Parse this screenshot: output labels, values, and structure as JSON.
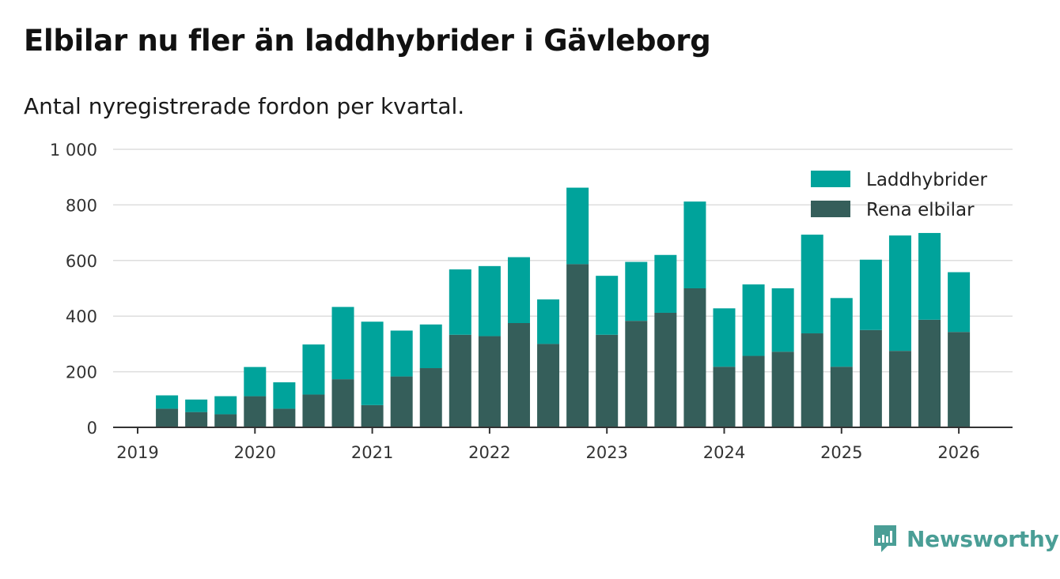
{
  "title": "Elbilar nu fler än laddhybrider i Gävleborg",
  "subtitle": "Antal nyregistrerade fordon per kvartal.",
  "brand": {
    "name": "Newsworthy",
    "icon": "newsworthy-logo-icon"
  },
  "colors": {
    "laddhybrider": "#00a39b",
    "elbilar": "#355e5a",
    "grid": "#dddddd",
    "axis": "#333333",
    "brand": "#4a9e96"
  },
  "chart_data": {
    "type": "bar",
    "stacked": true,
    "title": "Elbilar nu fler än laddhybrider i Gävleborg",
    "subtitle": "Antal nyregistrerade fordon per kvartal.",
    "xlabel": "",
    "ylabel": "",
    "ylim": [
      0,
      1000
    ],
    "yticks": [
      0,
      200,
      400,
      600,
      800,
      1000
    ],
    "ytick_labels": [
      "0",
      "200",
      "400",
      "600",
      "800",
      "1 000"
    ],
    "xlim": [
      2019.0,
      2026.45
    ],
    "xticks": [
      2019,
      2020,
      2021,
      2022,
      2023,
      2024,
      2025,
      2026
    ],
    "xtick_labels": [
      "2019",
      "2020",
      "2021",
      "2022",
      "2023",
      "2024",
      "2025",
      "2026"
    ],
    "grid": true,
    "legend_position": "top-right",
    "x": [
      2019.25,
      2019.5,
      2019.75,
      2020.0,
      2020.25,
      2020.5,
      2020.75,
      2021.0,
      2021.25,
      2021.5,
      2021.75,
      2022.0,
      2022.25,
      2022.5,
      2022.75,
      2023.0,
      2023.25,
      2023.5,
      2023.75,
      2024.0,
      2024.25,
      2024.5,
      2024.75,
      2025.0,
      2025.25,
      2025.5,
      2025.75,
      2026.0
    ],
    "series": [
      {
        "name": "Rena elbilar",
        "values": [
          67,
          55,
          47,
          112,
          67,
          118,
          173,
          80,
          183,
          213,
          333,
          328,
          375,
          300,
          587,
          333,
          383,
          412,
          500,
          218,
          257,
          272,
          338,
          218,
          350,
          275,
          387,
          343
        ]
      },
      {
        "name": "Laddhybrider",
        "values": [
          48,
          45,
          65,
          105,
          95,
          180,
          260,
          300,
          165,
          157,
          235,
          252,
          237,
          160,
          275,
          212,
          212,
          208,
          312,
          210,
          257,
          228,
          355,
          247,
          253,
          415,
          312,
          215
        ]
      }
    ],
    "legend": [
      "Laddhybrider",
      "Rena elbilar"
    ]
  }
}
